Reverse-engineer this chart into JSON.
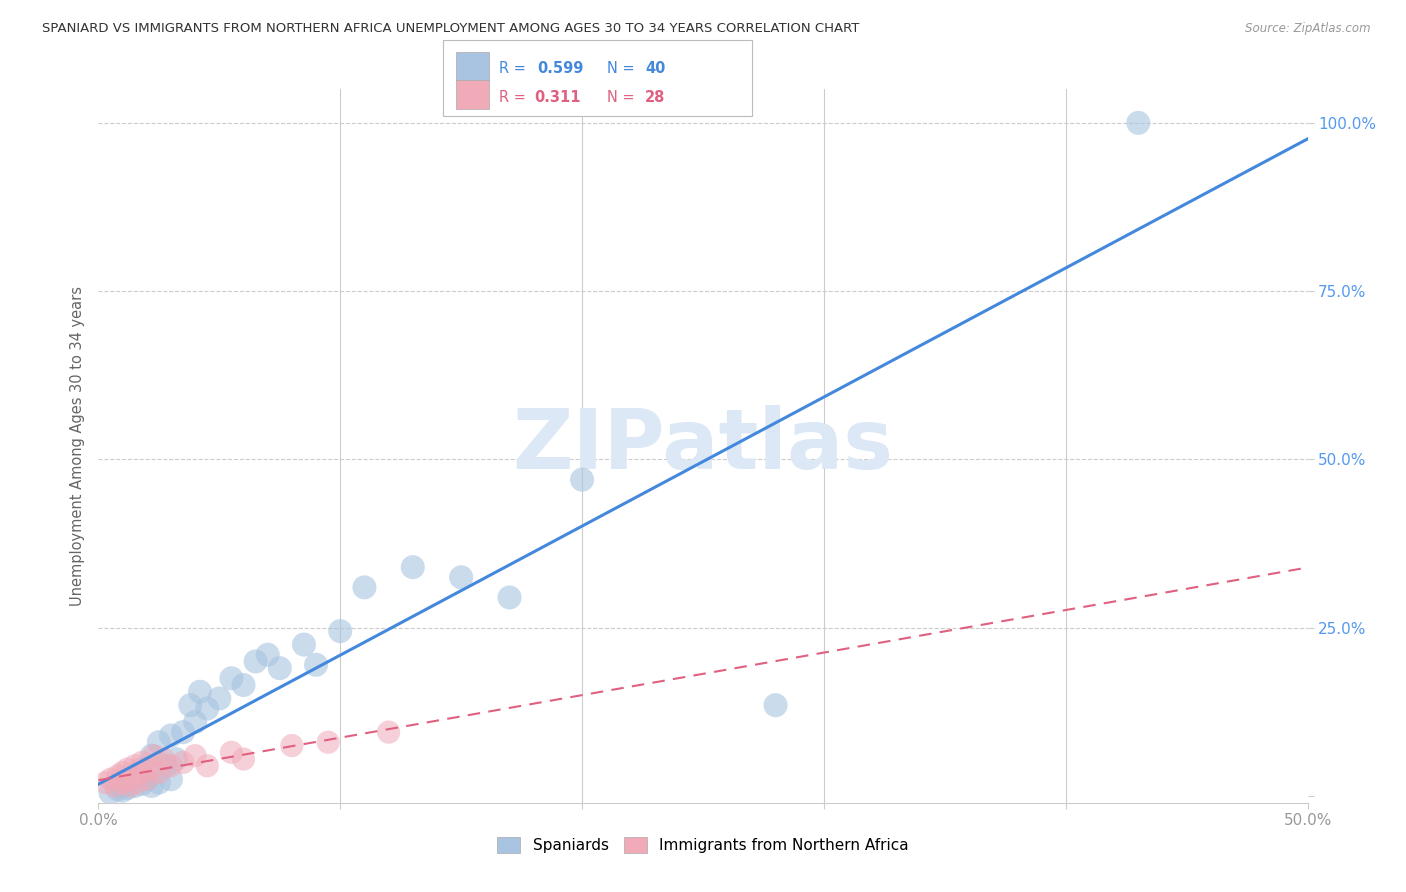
{
  "title": "SPANIARD VS IMMIGRANTS FROM NORTHERN AFRICA UNEMPLOYMENT AMONG AGES 30 TO 34 YEARS CORRELATION CHART",
  "source": "Source: ZipAtlas.com",
  "ylabel_label": "Unemployment Among Ages 30 to 34 years",
  "xlim": [
    0.0,
    0.5
  ],
  "ylim": [
    -0.01,
    1.05
  ],
  "xtick_positions": [
    0.0,
    0.1,
    0.2,
    0.3,
    0.4,
    0.5
  ],
  "xtick_labels": [
    "0.0%",
    "",
    "",
    "",
    "",
    "50.0%"
  ],
  "ytick_positions": [
    0.0,
    0.25,
    0.5,
    0.75,
    1.0
  ],
  "ytick_labels": [
    "",
    "25.0%",
    "50.0%",
    "75.0%",
    "100.0%"
  ],
  "spaniards_x": [
    0.005,
    0.008,
    0.01,
    0.01,
    0.012,
    0.013,
    0.015,
    0.015,
    0.018,
    0.018,
    0.02,
    0.022,
    0.022,
    0.025,
    0.025,
    0.028,
    0.03,
    0.03,
    0.032,
    0.035,
    0.038,
    0.04,
    0.042,
    0.045,
    0.05,
    0.055,
    0.06,
    0.065,
    0.07,
    0.075,
    0.085,
    0.09,
    0.1,
    0.11,
    0.13,
    0.15,
    0.17,
    0.2,
    0.28,
    0.43
  ],
  "spaniards_y": [
    0.005,
    0.01,
    0.008,
    0.015,
    0.012,
    0.02,
    0.015,
    0.03,
    0.018,
    0.04,
    0.025,
    0.015,
    0.06,
    0.02,
    0.08,
    0.045,
    0.025,
    0.09,
    0.055,
    0.095,
    0.135,
    0.11,
    0.155,
    0.13,
    0.145,
    0.175,
    0.165,
    0.2,
    0.21,
    0.19,
    0.225,
    0.195,
    0.245,
    0.31,
    0.34,
    0.325,
    0.295,
    0.47,
    0.135,
    1.0
  ],
  "immigrants_x": [
    0.003,
    0.005,
    0.007,
    0.008,
    0.01,
    0.01,
    0.012,
    0.012,
    0.013,
    0.015,
    0.015,
    0.016,
    0.018,
    0.018,
    0.02,
    0.022,
    0.023,
    0.025,
    0.027,
    0.03,
    0.035,
    0.04,
    0.045,
    0.055,
    0.06,
    0.08,
    0.095,
    0.12
  ],
  "immigrants_y": [
    0.02,
    0.025,
    0.015,
    0.03,
    0.02,
    0.035,
    0.025,
    0.04,
    0.015,
    0.03,
    0.045,
    0.02,
    0.035,
    0.05,
    0.025,
    0.04,
    0.06,
    0.035,
    0.055,
    0.045,
    0.05,
    0.06,
    0.045,
    0.065,
    0.055,
    0.075,
    0.08,
    0.095
  ],
  "blue_scatter_color": "#a8c4e0",
  "pink_scatter_color": "#f0aab8",
  "blue_line_color": "#4488dd",
  "pink_line_color": "#e06080",
  "blue_text_color": "#4488dd",
  "pink_text_color": "#e06080",
  "ytick_color": "#5599ee",
  "grid_color": "#dddddd",
  "grid_line_color": "#cccccc",
  "background_color": "#ffffff",
  "watermark_text": "ZIPatlas",
  "watermark_color": "#dce8f5",
  "legend_r1": "R = 0.599",
  "legend_n1": "N = 40",
  "legend_r2": "R =  0.311",
  "legend_n2": "N = 28"
}
